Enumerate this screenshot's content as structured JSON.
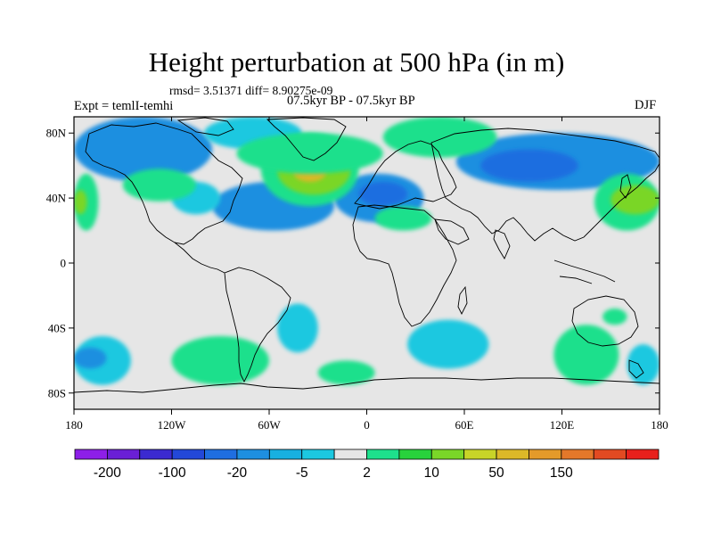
{
  "map": {
    "title": "Height perturbation at 500 hPa (in m)",
    "stats": "rmsd= 3.51371 diff= 8.90275e-09",
    "experiment": "Expt = temlI-temhi",
    "period": "07.5kyr BP - 07.5kyr BP",
    "season": "DJF",
    "projection": "equirectangular",
    "lon_range": [
      -180,
      180
    ],
    "lat_range": [
      -90,
      90
    ],
    "lon_ticks": [
      {
        "value": -180,
        "label": "180"
      },
      {
        "value": -120,
        "label": "120W"
      },
      {
        "value": -60,
        "label": "60W"
      },
      {
        "value": 0,
        "label": "0"
      },
      {
        "value": 60,
        "label": "60E"
      },
      {
        "value": 120,
        "label": "120E"
      },
      {
        "value": 180,
        "label": "180"
      }
    ],
    "lat_ticks": [
      {
        "value": 80,
        "label": "80N"
      },
      {
        "value": 40,
        "label": "40N"
      },
      {
        "value": 0,
        "label": "0"
      },
      {
        "value": -40,
        "label": "40S"
      },
      {
        "value": -80,
        "label": "80S"
      }
    ],
    "background_color": "#e6e6e6",
    "fields": [
      {
        "level": -10,
        "lon": [
          -180,
          -95
        ],
        "lat": [
          50,
          90
        ]
      },
      {
        "level": -5,
        "lon": [
          -100,
          -40
        ],
        "lat": [
          70,
          90
        ]
      },
      {
        "level": -10,
        "lon": [
          -95,
          -20
        ],
        "lat": [
          20,
          50
        ]
      },
      {
        "level": -5,
        "lon": [
          -120,
          -90
        ],
        "lat": [
          30,
          50
        ]
      },
      {
        "level": -10,
        "lon": [
          -20,
          35
        ],
        "lat": [
          25,
          55
        ]
      },
      {
        "level": -20,
        "lon": [
          -5,
          25
        ],
        "lat": [
          35,
          50
        ]
      },
      {
        "level": -10,
        "lon": [
          55,
          180
        ],
        "lat": [
          45,
          80
        ]
      },
      {
        "level": -20,
        "lon": [
          70,
          130
        ],
        "lat": [
          50,
          70
        ]
      },
      {
        "level": 2,
        "lon": [
          -180,
          -165
        ],
        "lat": [
          20,
          55
        ]
      },
      {
        "level": 10,
        "lon": [
          -180,
          -172
        ],
        "lat": [
          30,
          45
        ]
      },
      {
        "level": 2,
        "lon": [
          -150,
          -105
        ],
        "lat": [
          38,
          58
        ]
      },
      {
        "level": 2,
        "lon": [
          -65,
          -5
        ],
        "lat": [
          35,
          80
        ]
      },
      {
        "level": 10,
        "lon": [
          -55,
          -10
        ],
        "lat": [
          42,
          72
        ]
      },
      {
        "level": 20,
        "lon": [
          -45,
          -25
        ],
        "lat": [
          50,
          62
        ]
      },
      {
        "level": 2,
        "lon": [
          10,
          80
        ],
        "lat": [
          65,
          90
        ]
      },
      {
        "level": 2,
        "lon": [
          5,
          40
        ],
        "lat": [
          20,
          35
        ]
      },
      {
        "level": 2,
        "lon": [
          -80,
          10
        ],
        "lat": [
          55,
          80
        ]
      },
      {
        "level": 2,
        "lon": [
          140,
          180
        ],
        "lat": [
          20,
          55
        ]
      },
      {
        "level": 10,
        "lon": [
          150,
          180
        ],
        "lat": [
          30,
          48
        ]
      },
      {
        "level": 2,
        "lon": [
          -120,
          -60
        ],
        "lat": [
          -75,
          -45
        ]
      },
      {
        "level": -5,
        "lon": [
          -180,
          -145
        ],
        "lat": [
          -75,
          -45
        ]
      },
      {
        "level": -10,
        "lon": [
          -180,
          -160
        ],
        "lat": [
          -65,
          -52
        ]
      },
      {
        "level": -5,
        "lon": [
          -55,
          -30
        ],
        "lat": [
          -55,
          -25
        ]
      },
      {
        "level": 2,
        "lon": [
          -30,
          5
        ],
        "lat": [
          -75,
          -60
        ]
      },
      {
        "level": -5,
        "lon": [
          25,
          75
        ],
        "lat": [
          -65,
          -35
        ]
      },
      {
        "level": 2,
        "lon": [
          115,
          155
        ],
        "lat": [
          -75,
          -38
        ]
      },
      {
        "level": -5,
        "lon": [
          160,
          180
        ],
        "lat": [
          -75,
          -50
        ]
      },
      {
        "level": 2,
        "lon": [
          145,
          160
        ],
        "lat": [
          -38,
          -28
        ]
      }
    ]
  },
  "colorbar": {
    "colors": [
      "#8d1fe8",
      "#6a1fd6",
      "#3b2ad0",
      "#2348d8",
      "#1f6ee0",
      "#1e8fe0",
      "#18b0e0",
      "#1cc8e0",
      "#e6e6e6",
      "#1ee08c",
      "#28d23c",
      "#7ad628",
      "#c8d428",
      "#dcb828",
      "#e49a2a",
      "#e4782a",
      "#e24a22",
      "#e8201c"
    ],
    "labels": [
      {
        "after_index": 0,
        "text": "-200"
      },
      {
        "after_index": 2,
        "text": "-100"
      },
      {
        "after_index": 4,
        "text": "-20"
      },
      {
        "after_index": 6,
        "text": "-5"
      },
      {
        "after_index": 8,
        "text": "2"
      },
      {
        "after_index": 10,
        "text": "10"
      },
      {
        "after_index": 12,
        "text": "50"
      },
      {
        "after_index": 14,
        "text": "150"
      }
    ]
  },
  "level_colors": {
    "-20": "#1f6ee0",
    "-10": "#1e8fe0",
    "-5": "#1cc8e0",
    "2": "#1ee08c",
    "10": "#7ad628",
    "20": "#dcb828"
  }
}
